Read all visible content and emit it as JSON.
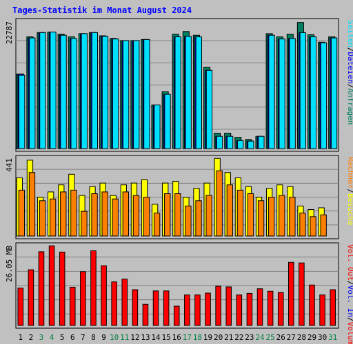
{
  "chart_data": [
    {
      "type": "bar",
      "title": "Tages-Statistik im Monat August 2024",
      "categories": [
        "1",
        "2",
        "3",
        "4",
        "5",
        "6",
        "7",
        "8",
        "9",
        "10",
        "11",
        "12",
        "13",
        "14",
        "15",
        "16",
        "17",
        "18",
        "19",
        "20",
        "21",
        "22",
        "23",
        "24",
        "25",
        "26",
        "27",
        "28",
        "29",
        "30",
        "31"
      ],
      "weekend_days": [
        "3",
        "4",
        "10",
        "11",
        "17",
        "18",
        "24",
        "25",
        "31"
      ],
      "y_max_label": "22787",
      "legend": [
        "Anfragen",
        "Dateien",
        "Seiten"
      ],
      "legend_separator": "/",
      "series": [
        {
          "name": "Anfragen",
          "color": "#008060",
          "values": [
            14000,
            21000,
            21800,
            21900,
            21500,
            21000,
            21600,
            21800,
            21200,
            20700,
            20300,
            20300,
            20500,
            8200,
            10700,
            21500,
            22000,
            21300,
            15300,
            2900,
            2900,
            2100,
            1700,
            2300,
            21600,
            21000,
            21500,
            23700,
            21400,
            20000,
            21000
          ]
        },
        {
          "name": "Dateien",
          "color": "#0000ff",
          "values": [
            14000,
            20800,
            21800,
            21900,
            21300,
            20700,
            21600,
            21800,
            21100,
            20600,
            20300,
            20300,
            20500,
            8200,
            10200,
            21000,
            21100,
            21000,
            14700,
            2300,
            2300,
            1500,
            1400,
            2300,
            21300,
            20600,
            20700,
            21800,
            21000,
            19900,
            20800
          ]
        },
        {
          "name": "Seiten",
          "color": "#00e0ff",
          "values": [
            13800,
            20800,
            21800,
            21900,
            21300,
            20700,
            21600,
            21800,
            21100,
            20600,
            20300,
            20300,
            20500,
            8200,
            10200,
            21000,
            21100,
            21000,
            14700,
            2300,
            2300,
            1500,
            1400,
            2300,
            21300,
            20600,
            20700,
            21800,
            21000,
            19900,
            20800
          ]
        }
      ]
    },
    {
      "type": "bar",
      "y_max_label": "441",
      "legend": [
        "Besuche",
        "Rechner"
      ],
      "legend_separator": "/",
      "series": [
        {
          "name": "Besuche",
          "color": "#ffff00",
          "values": [
            330,
            430,
            220,
            250,
            290,
            350,
            230,
            280,
            300,
            230,
            290,
            300,
            320,
            180,
            300,
            310,
            220,
            270,
            300,
            440,
            360,
            330,
            280,
            220,
            270,
            290,
            280,
            170,
            150,
            160,
            0
          ]
        },
        {
          "name": "Rechner",
          "color": "#ff8000",
          "values": [
            260,
            360,
            200,
            210,
            250,
            260,
            140,
            240,
            250,
            210,
            250,
            230,
            220,
            130,
            240,
            240,
            170,
            200,
            230,
            370,
            290,
            260,
            240,
            200,
            220,
            230,
            220,
            130,
            110,
            120,
            0
          ]
        }
      ]
    },
    {
      "type": "bar",
      "y_max_label": "26.05 MB",
      "legend": [
        "Volumen",
        "Vol. In",
        "Vol. Out"
      ],
      "legend_separator": "/",
      "series": [
        {
          "name": "Volumen",
          "color": "#ff0000",
          "values": [
            12.0,
            17.9,
            23.7,
            25.6,
            23.6,
            12.3,
            17.3,
            24.0,
            19.2,
            14.0,
            14.9,
            11.5,
            6.8,
            11.1,
            11.1,
            6.2,
            9.8,
            9.8,
            10.4,
            12.6,
            12.4,
            9.8,
            10.3,
            11.8,
            11.0,
            10.6,
            20.3,
            20.1,
            13.0,
            9.8,
            11.5
          ]
        }
      ]
    }
  ],
  "colors": {
    "background": "#c0c0c0",
    "plot_background": "#c0c0c0",
    "gridline": "#808080",
    "axis": "#000000",
    "title": "#0000ff",
    "weekend_label": "#008040",
    "weekday_label": "#000000",
    "bar_outline": "#000000",
    "last_day_requests_fill": "#00e0ff",
    "last_day_visits_fill": "#ffff00",
    "last_day_hosts_fill": "#ff8000",
    "legend_separator": "#000000",
    "legend_vol_in": "#ff0000",
    "legend_vol_out": "#0000ff"
  }
}
